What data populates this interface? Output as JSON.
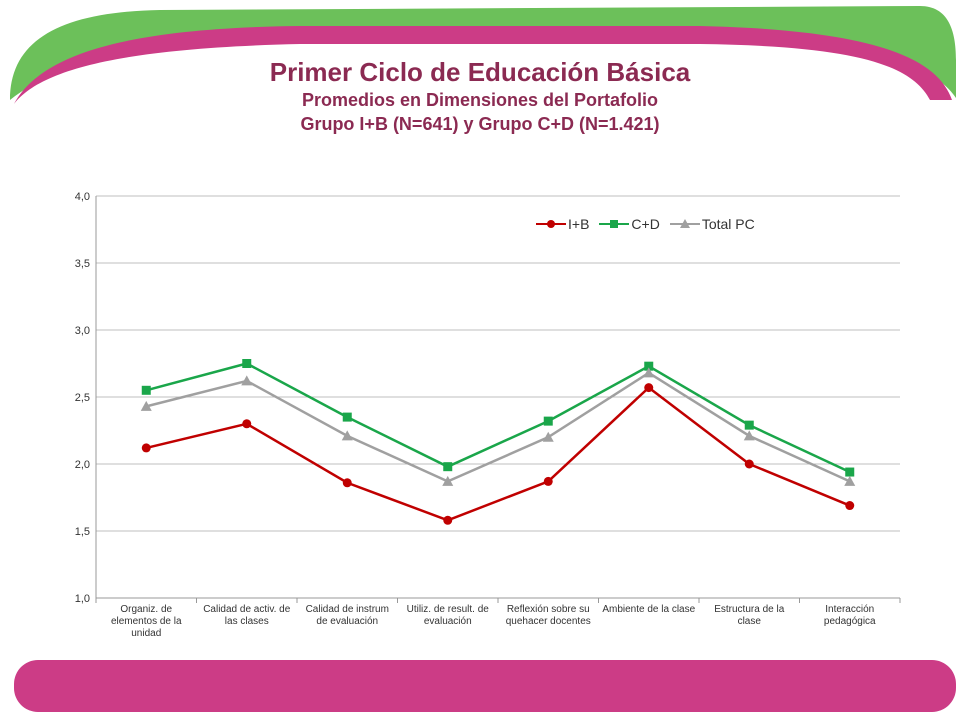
{
  "header": {
    "title": "Primer Ciclo de Educación Básica",
    "subtitle": "Promedios en Dimensiones del Portafolio",
    "subtitle2": "Grupo I+B (N=641) y Grupo C+D (N=1.421)"
  },
  "colors": {
    "ib": "#c00000",
    "cd": "#1aa64a",
    "total": "#a0a0a0",
    "decor_green": "#6cc05a",
    "decor_pink": "#cc3c86"
  },
  "chart_data": {
    "type": "line",
    "categories": [
      "Organiz. de elementos de la unidad",
      "Calidad de activ. de las clases",
      "Calidad de instrum de evaluación",
      "Utiliz. de result. de evaluación",
      "Reflexión sobre su quehacer docentes",
      "Ambiente de la clase",
      "Estructura de la clase",
      "Interacción pedagógica"
    ],
    "series": [
      {
        "name": "I+B",
        "values": [
          2.12,
          2.3,
          1.86,
          1.58,
          1.87,
          2.57,
          2.0,
          1.69
        ]
      },
      {
        "name": "C+D",
        "values": [
          2.55,
          2.75,
          2.35,
          1.98,
          2.32,
          2.73,
          2.29,
          1.94
        ]
      },
      {
        "name": "Total PC",
        "values": [
          2.43,
          2.62,
          2.21,
          1.87,
          2.2,
          2.68,
          2.21,
          1.87
        ]
      }
    ],
    "ylim": [
      1.0,
      4.0
    ],
    "yticks": [
      "1,0",
      "1,5",
      "2,0",
      "2,5",
      "3,0",
      "3,5",
      "4,0"
    ],
    "grid": true,
    "legend": "top-right"
  }
}
